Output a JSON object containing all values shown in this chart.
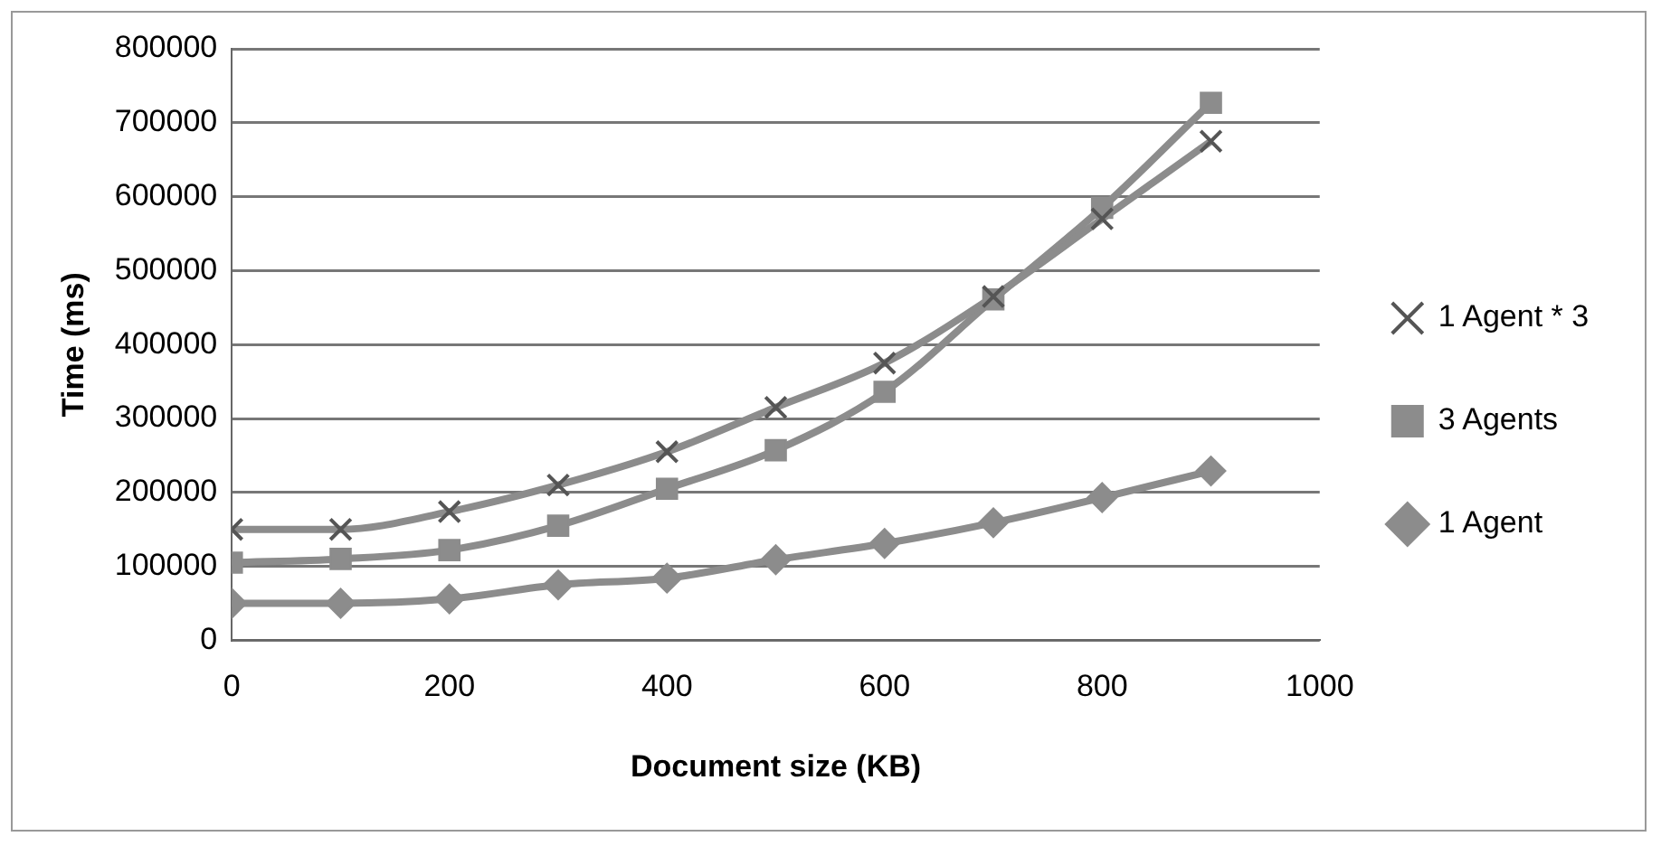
{
  "chart_data": {
    "type": "line",
    "xlabel": "Document size (KB)",
    "ylabel": "Time (ms)",
    "x": [
      0,
      100,
      200,
      300,
      400,
      500,
      600,
      700,
      800,
      900
    ],
    "xlim": [
      0,
      1000
    ],
    "xticks": [
      0,
      200,
      400,
      600,
      800,
      1000
    ],
    "ylim": [
      0,
      800000
    ],
    "yticks": [
      0,
      100000,
      200000,
      300000,
      400000,
      500000,
      600000,
      700000,
      800000
    ],
    "grid": "y",
    "legend": "right",
    "line_style": "solid",
    "series": [
      {
        "name": "1 Agent",
        "color": "#8c8c8c",
        "marker": "diamond",
        "values": [
          50000,
          50000,
          56000,
          75000,
          84000,
          109000,
          131000,
          159000,
          193000,
          229000
        ]
      },
      {
        "name": "3 Agents",
        "color": "#8c8c8c",
        "marker": "square",
        "values": [
          105000,
          110000,
          122000,
          155000,
          205000,
          257000,
          336000,
          461000,
          585000,
          727000
        ]
      },
      {
        "name": "1 Agent * 3",
        "color": "#8c8c8c",
        "marker": "cross",
        "values": [
          150000,
          150000,
          174000,
          210000,
          255000,
          315000,
          375000,
          465000,
          570000,
          675000
        ]
      }
    ]
  }
}
